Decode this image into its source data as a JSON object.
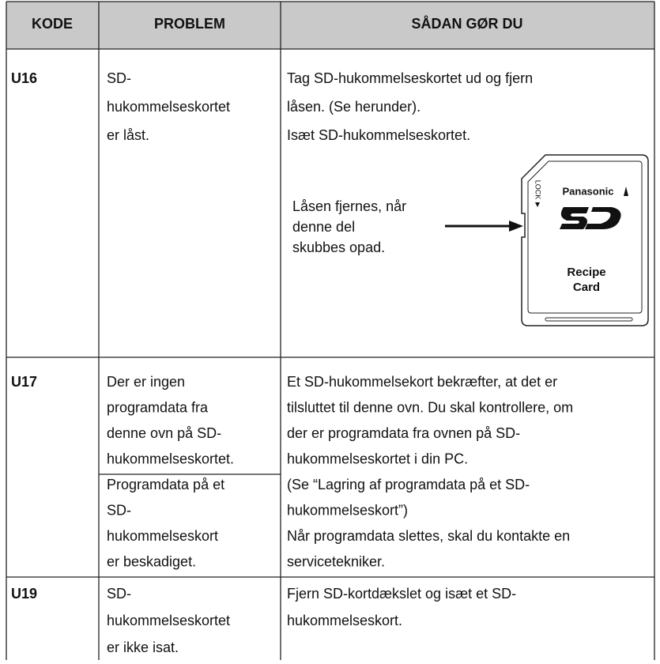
{
  "header": {
    "columns": [
      "KODE",
      "PROBLEM",
      "SÅDAN GØR DU"
    ]
  },
  "rows": [
    {
      "code": "U16",
      "problems": [
        [
          "SD-",
          "hukommelseskortet",
          "er låst."
        ]
      ],
      "solution": [
        "Tag SD-hukommelseskortet ud og fjern",
        "låsen. (Se herunder).",
        "Isæt SD-hukommelseskortet."
      ],
      "figure": {
        "annotation": [
          "Låsen fjernes, når",
          "denne del",
          "skubbes opad."
        ],
        "card": {
          "brand": "Panasonic",
          "lock": "LOCK",
          "label": [
            "Recipe",
            "Card"
          ]
        }
      }
    },
    {
      "code": "U17",
      "problems": [
        [
          "Der er ingen",
          "programdata fra",
          "denne ovn på SD-",
          "hukommelseskortet."
        ],
        [
          "Programdata på et",
          "SD-",
          "hukommelseskort",
          "er beskadiget."
        ]
      ],
      "solution": [
        "Et SD-hukommelsekort bekræfter, at det er",
        "tilsluttet til denne ovn. Du skal kontrollere, om",
        "der er programdata fra ovnen på SD-",
        "hukommelseskortet i din PC.",
        "(Se “Lagring af programdata på et SD-",
        "hukommelseskort”)",
        "Når programdata slettes, skal du kontakte en",
        "servicetekniker."
      ]
    },
    {
      "code": "U19",
      "problems": [
        [
          "SD-",
          "hukommelseskortet",
          "er ikke isat."
        ]
      ],
      "solution": [
        "Fjern SD-kortdækslet og isæt et SD-",
        "hukommelseskort."
      ]
    }
  ]
}
